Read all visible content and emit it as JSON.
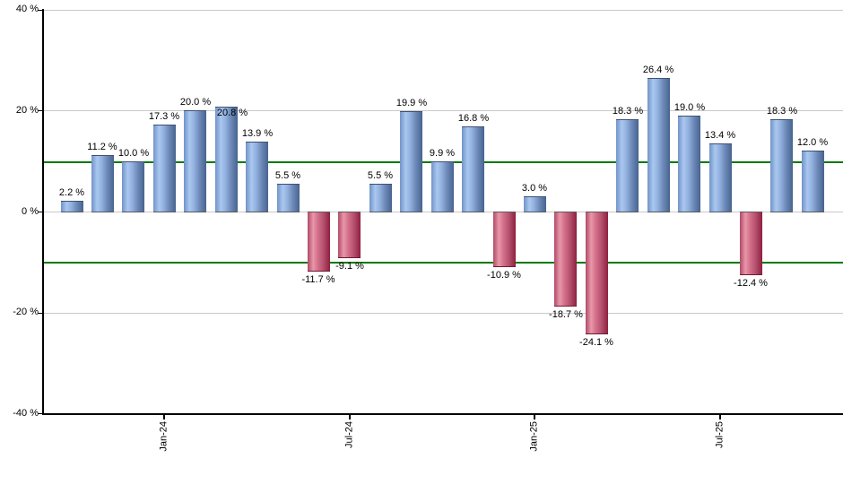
{
  "chart_data": {
    "type": "bar",
    "title": "",
    "xlabel": "",
    "ylabel": "",
    "ylim": [
      -40,
      40
    ],
    "grid": true,
    "values": [
      2.2,
      11.2,
      10.0,
      17.3,
      20.0,
      20.8,
      13.9,
      5.5,
      -11.7,
      -9.1,
      5.5,
      19.9,
      9.9,
      16.8,
      -10.9,
      3.0,
      -18.7,
      -24.1,
      18.3,
      26.4,
      19.0,
      13.4,
      -12.4,
      18.3,
      12.0
    ],
    "labels": [
      "2.2 %",
      "11.2 %",
      "10.0 %",
      "17.3 %",
      "20.0 %",
      "20.8 %",
      "13.9 %",
      "5.5 %",
      "-11.7 %",
      "-9.1 %",
      "5.5 %",
      "19.9 %",
      "9.9 %",
      "16.8 %",
      "-10.9 %",
      "3.0 %",
      "-18.7 %",
      "-24.1 %",
      "18.3 %",
      "26.4 %",
      "19.0 %",
      "13.4 %",
      "-12.4 %",
      "18.3 %",
      "12.0 %"
    ],
    "x_ticks": [
      {
        "index": 3,
        "label": "Jan-24"
      },
      {
        "index": 9,
        "label": "Jul-24"
      },
      {
        "index": 15,
        "label": "Jan-25"
      },
      {
        "index": 21,
        "label": "Jul-25"
      }
    ],
    "y_ticks": [
      {
        "value": 40,
        "label": "40 %"
      },
      {
        "value": 20,
        "label": "20 %"
      },
      {
        "value": 0,
        "label": "0 %"
      },
      {
        "value": -20,
        "label": "-20 %"
      },
      {
        "value": -40,
        "label": "-40 %"
      }
    ],
    "gridline_values": [
      40,
      20,
      0,
      -20
    ],
    "reference_lines": [
      {
        "value": 10
      },
      {
        "value": -10
      }
    ],
    "colors": {
      "positive_bar": "#7ba0d4",
      "negative_bar": "#c25673",
      "reference_line": "#007800",
      "gridline": "#c9c9c9",
      "axis": "#000000",
      "label_text": "#000000",
      "background": "#ffffff"
    },
    "legend": null
  }
}
